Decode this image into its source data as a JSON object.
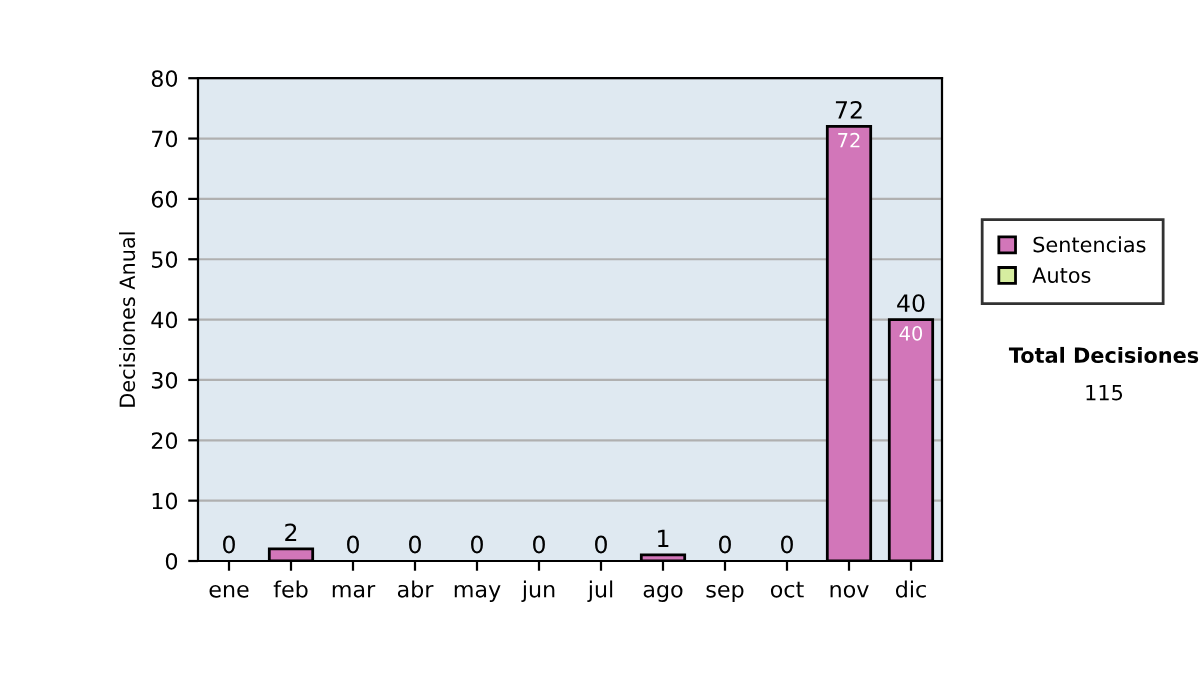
{
  "chart_data": {
    "type": "bar",
    "stacked": true,
    "ylabel": "Decisiones Anual",
    "categories": [
      "ene",
      "feb",
      "mar",
      "abr",
      "may",
      "jun",
      "jul",
      "ago",
      "sep",
      "oct",
      "nov",
      "dic"
    ],
    "series": [
      {
        "name": "Sentencias",
        "color": "#d276b9",
        "values": [
          0,
          2,
          0,
          0,
          0,
          0,
          0,
          1,
          0,
          0,
          72,
          40
        ],
        "value_labels": [
          null,
          null,
          null,
          null,
          null,
          null,
          null,
          null,
          null,
          null,
          "72",
          "40"
        ]
      },
      {
        "name": "Autos",
        "color": "#d6eda0",
        "values": [
          0,
          0,
          0,
          0,
          0,
          0,
          0,
          0,
          0,
          0,
          0,
          0
        ]
      }
    ],
    "totals": [
      "0",
      "2",
      "0",
      "0",
      "0",
      "0",
      "0",
      "1",
      "0",
      "0",
      "72",
      "40"
    ],
    "ylim": [
      0,
      80
    ],
    "yticks": [
      0,
      10,
      20,
      30,
      40,
      50,
      60,
      70,
      80
    ],
    "grid": "y",
    "legend": "right",
    "annotations": [
      "Total Decisiones",
      "115"
    ]
  }
}
